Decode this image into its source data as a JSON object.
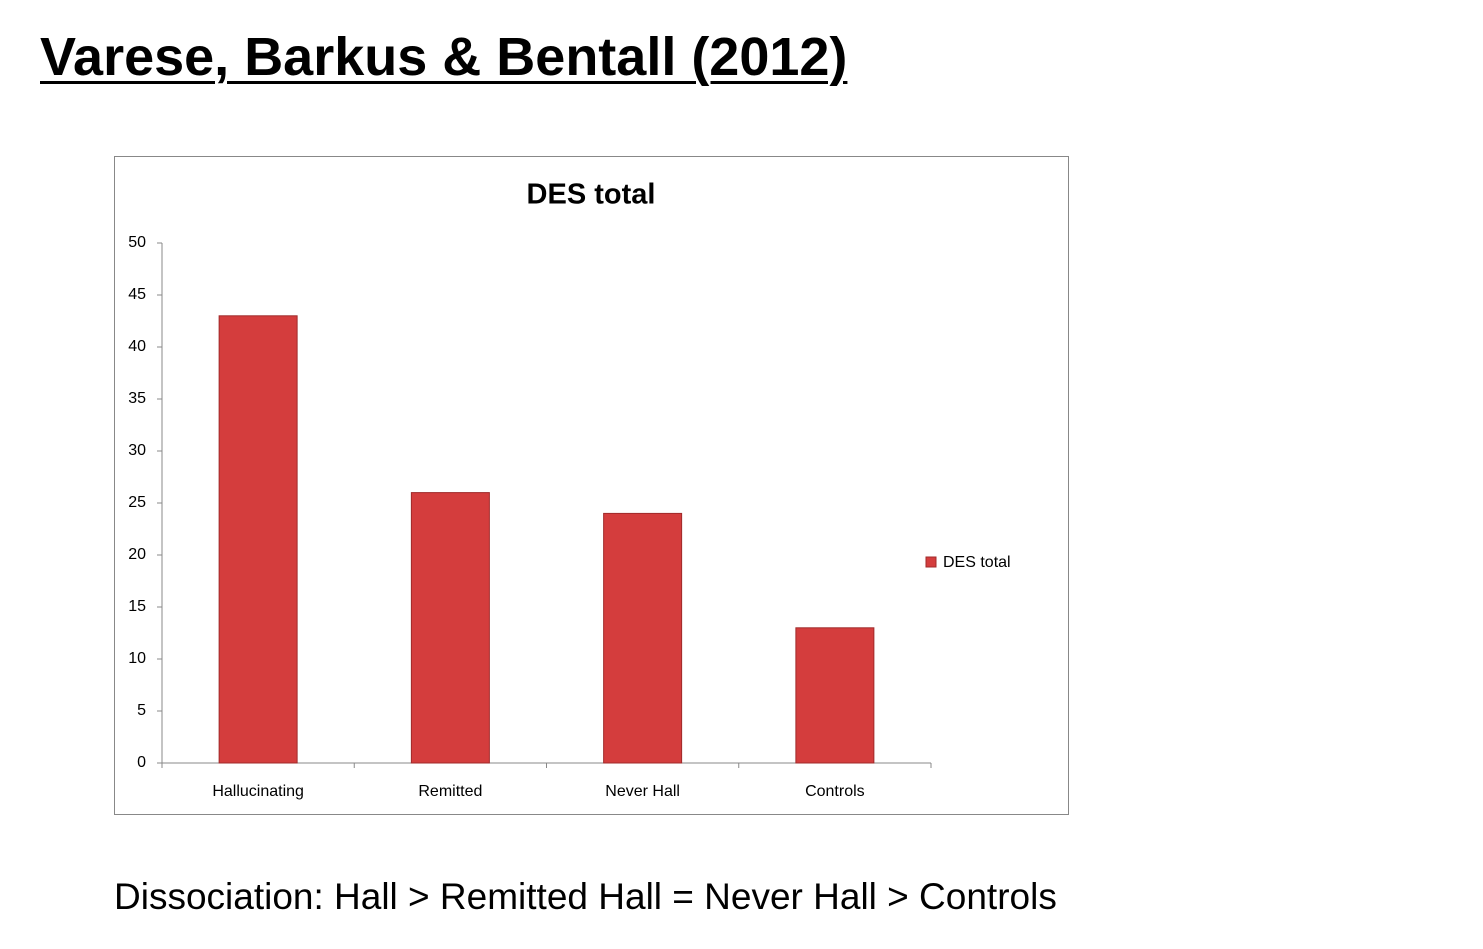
{
  "title": "Varese, Barkus & Bentall (2012)",
  "caption": "Dissociation: Hall > Remitted Hall = Never Hall > Controls",
  "chart_data": {
    "type": "bar",
    "title": "DES total",
    "categories": [
      "Hallucinating",
      "Remitted",
      "Never Hall",
      "Controls"
    ],
    "series": [
      {
        "name": "DES total",
        "color": "#d43d3d",
        "values": [
          43,
          26,
          24,
          13
        ]
      }
    ],
    "ylim": [
      0,
      50
    ],
    "yticks": [
      0,
      5,
      10,
      15,
      20,
      25,
      30,
      35,
      40,
      45,
      50
    ],
    "grid": false,
    "legend": "right"
  }
}
